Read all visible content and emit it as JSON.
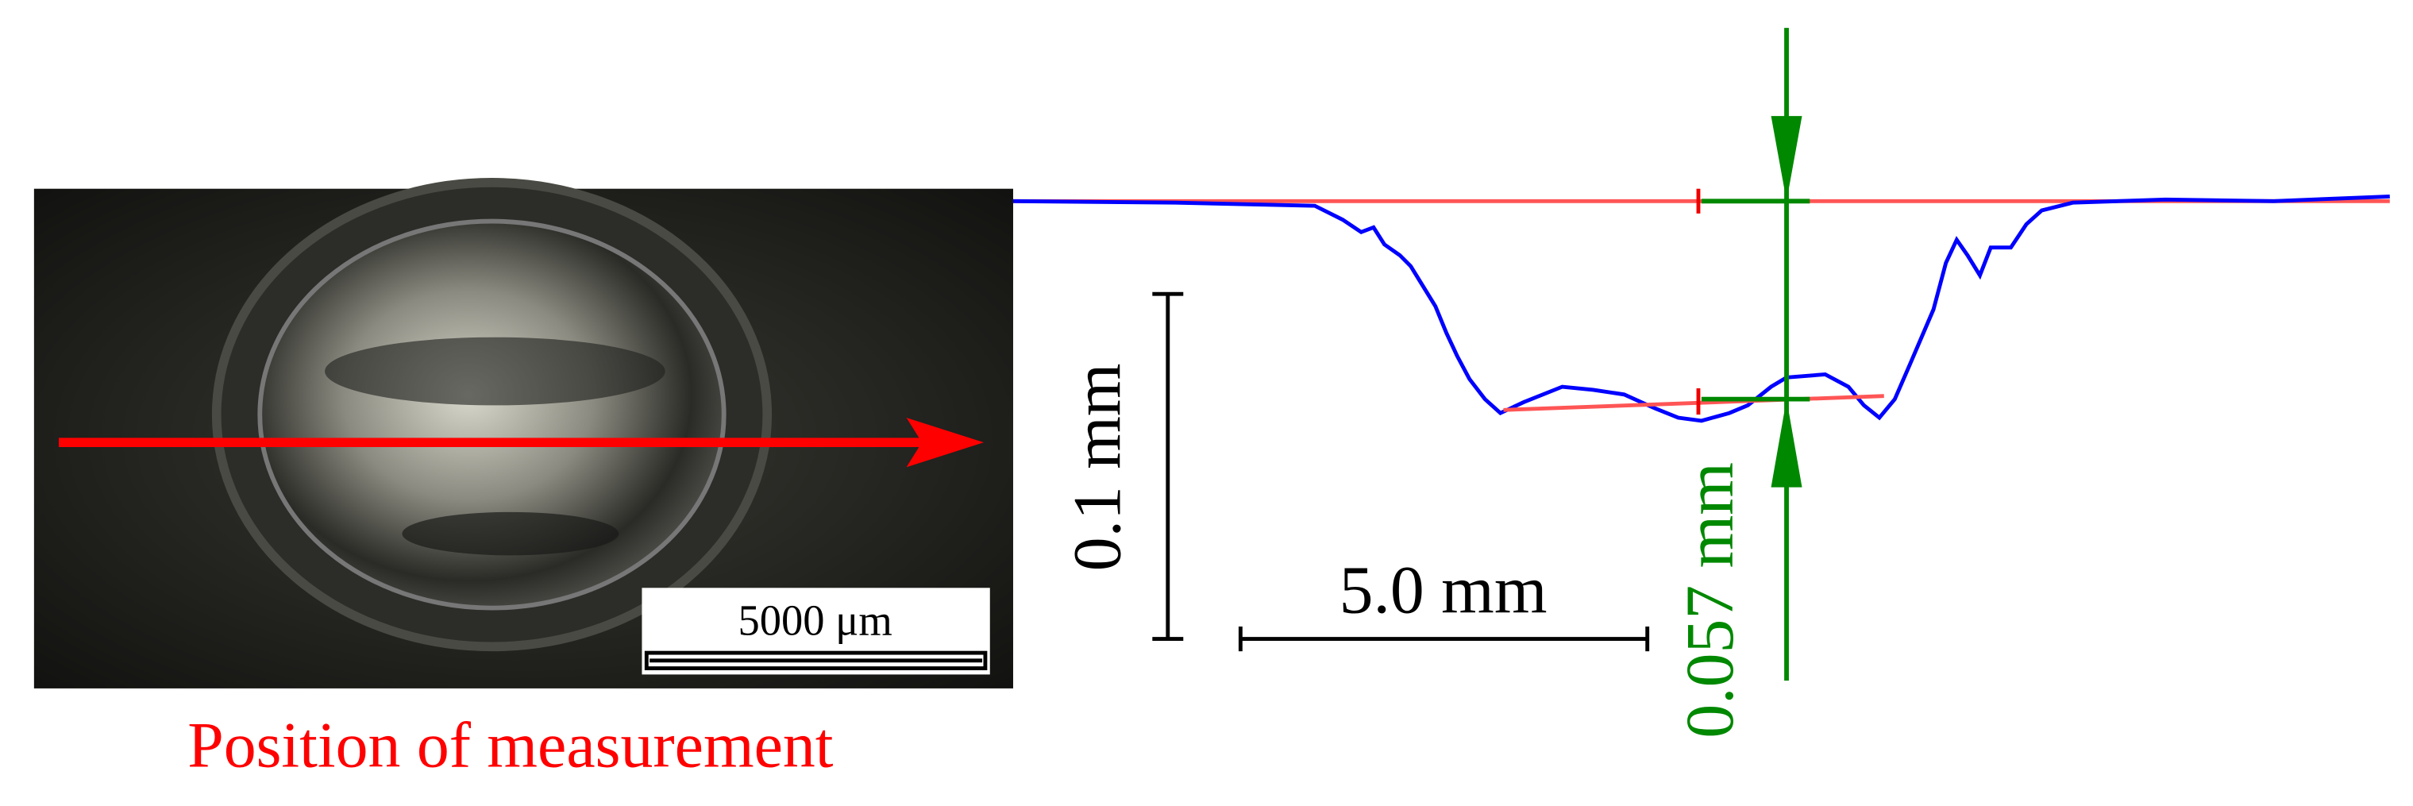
{
  "image": {
    "scale_bar_label": "5000 μm",
    "caption": "Position of measurement"
  },
  "profile": {
    "vertical_scale_label": "0.1 mm",
    "horizontal_scale_label": "5.0 mm",
    "depth_label": "0.057 mm"
  }
}
